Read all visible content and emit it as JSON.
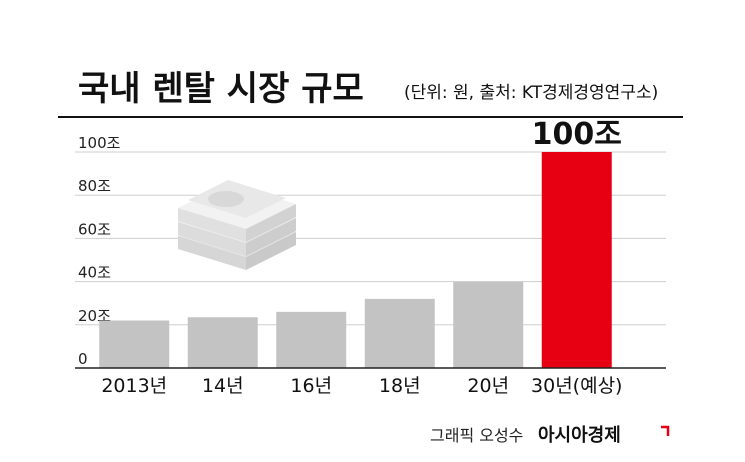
{
  "chart_data": {
    "type": "bar",
    "title": "국내 렌탈 시장 규모",
    "subtitle": "(단위: 원, 출처: KT경제경영연구소)",
    "categories": [
      "2013년",
      "14년",
      "16년",
      "18년",
      "20년",
      "30년(예상)"
    ],
    "values": [
      22,
      23.5,
      26,
      32,
      40,
      100
    ],
    "ylim": [
      0,
      100
    ],
    "yticks": [
      0,
      20,
      40,
      60,
      80,
      100
    ],
    "ytick_labels": [
      "0",
      "20조",
      "40조",
      "60조",
      "80조",
      "100조"
    ],
    "highlight_index": 5,
    "highlight_label": "100조",
    "grid": true,
    "xlabel": "",
    "ylabel": ""
  },
  "colors": {
    "bar": "#c3c3c3",
    "highlight": "#e60012",
    "grid": "#cfcfcf",
    "accent": "#e60012"
  },
  "footer": {
    "credit": "그래픽 오성수",
    "brand": "아시아경제"
  },
  "decoration": {
    "icon": "money-stack-icon"
  }
}
